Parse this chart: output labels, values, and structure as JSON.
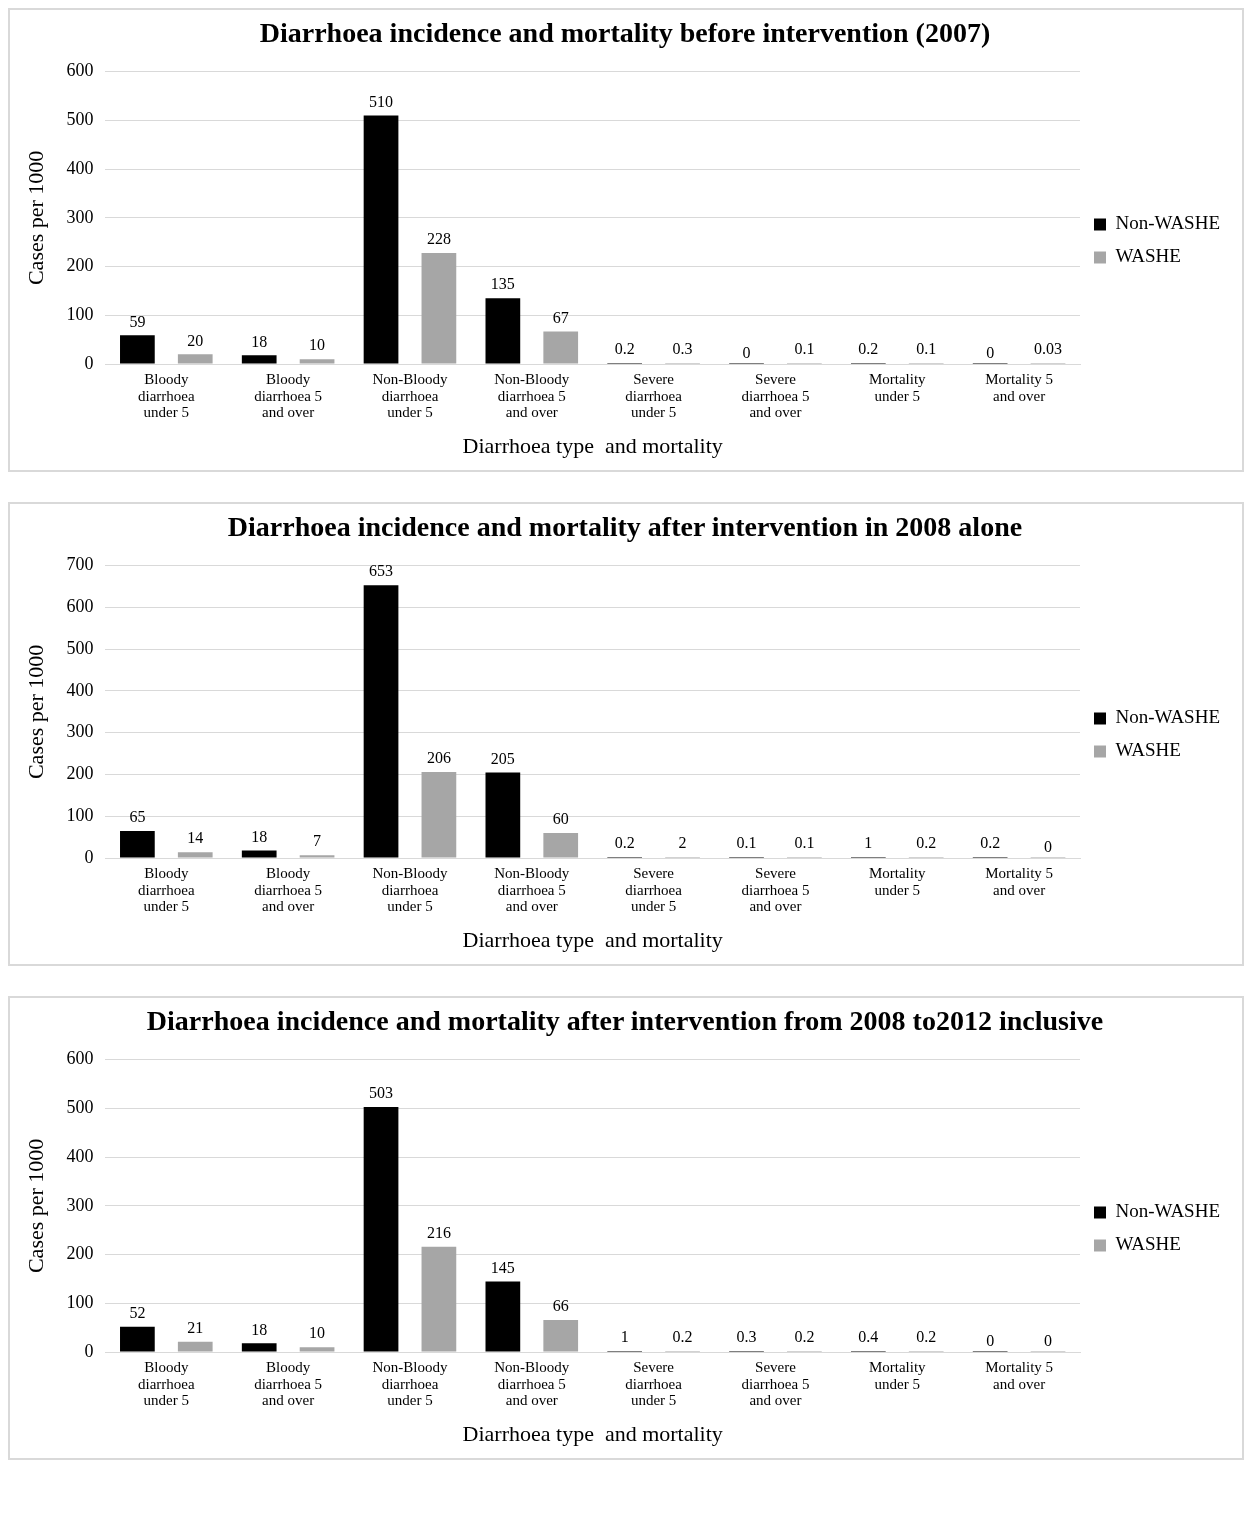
{
  "chart_data": [
    {
      "type": "bar",
      "title": "Diarrhoea incidence and mortality before intervention (2007)",
      "xlabel": "Diarrhoea type  and mortality",
      "ylabel": "Cases per 1000",
      "categories": [
        "Bloody diarrhoea under 5",
        "Bloody diarrhoea 5 and over",
        "Non-Bloody diarrhoea under 5",
        "Non-Bloody diarrhoea 5 and over",
        "Severe diarrhoea under 5",
        "Severe diarrhoea 5 and over",
        "Mortality under 5",
        "Mortality 5 and over"
      ],
      "series": [
        {
          "name": "Non-WASHE",
          "color": "#000000",
          "values": [
            59,
            18,
            510,
            135,
            0.2,
            0,
            0.2,
            0
          ]
        },
        {
          "name": "WASHE",
          "color": "#a6a6a6",
          "values": [
            20,
            10,
            228,
            67,
            0.3,
            0.1,
            0.1,
            0.03
          ]
        }
      ],
      "ylim": [
        0,
        600
      ],
      "yticks": [
        0,
        100,
        200,
        300,
        400,
        500,
        600
      ],
      "grid": "y",
      "legend": "right",
      "data_labels": true
    },
    {
      "type": "bar",
      "title": "Diarrhoea incidence and mortality after intervention in 2008 alone",
      "xlabel": "Diarrhoea type  and mortality",
      "ylabel": "Cases per 1000",
      "categories": [
        "Bloody diarrhoea under 5",
        "Bloody diarrhoea 5 and over",
        "Non-Bloody diarrhoea under 5",
        "Non-Bloody diarrhoea 5 and over",
        "Severe diarrhoea under 5",
        "Severe diarrhoea 5 and over",
        "Mortality under 5",
        "Mortality 5 and over"
      ],
      "series": [
        {
          "name": "Non-WASHE",
          "color": "#000000",
          "values": [
            65,
            18,
            653,
            205,
            0.2,
            0.1,
            1,
            0.2
          ]
        },
        {
          "name": "WASHE",
          "color": "#a6a6a6",
          "values": [
            14,
            7,
            206,
            60,
            2,
            0.1,
            0.2,
            0
          ]
        }
      ],
      "ylim": [
        0,
        700
      ],
      "yticks": [
        0,
        100,
        200,
        300,
        400,
        500,
        600,
        700
      ],
      "grid": "y",
      "legend": "right",
      "data_labels": true
    },
    {
      "type": "bar",
      "title": "Diarrhoea incidence and mortality after intervention from 2008 to2012 inclusive",
      "xlabel": "Diarrhoea type  and mortality",
      "ylabel": "Cases per 1000",
      "categories": [
        "Bloody diarrhoea under 5",
        "Bloody diarrhoea 5 and over",
        "Non-Bloody diarrhoea under 5",
        "Non-Bloody diarrhoea 5 and over",
        "Severe diarrhoea under 5",
        "Severe diarrhoea 5 and over",
        "Mortality under 5",
        "Mortality 5 and over"
      ],
      "series": [
        {
          "name": "Non-WASHE",
          "color": "#000000",
          "values": [
            52,
            18,
            503,
            145,
            1,
            0.3,
            0.4,
            0
          ]
        },
        {
          "name": "WASHE",
          "color": "#a6a6a6",
          "values": [
            21,
            10,
            216,
            66,
            0.2,
            0.2,
            0.2,
            0
          ]
        }
      ],
      "ylim": [
        0,
        600
      ],
      "yticks": [
        0,
        100,
        200,
        300,
        400,
        500,
        600
      ],
      "grid": "y",
      "legend": "right",
      "data_labels": true
    }
  ]
}
